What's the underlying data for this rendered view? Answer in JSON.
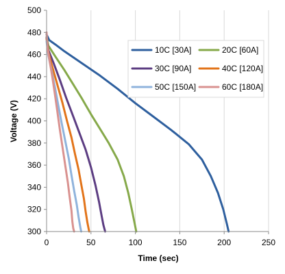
{
  "chart_data": {
    "type": "line",
    "title": "",
    "xlabel": "Time (sec)",
    "ylabel": "Voltage (V)",
    "xlim": [
      0,
      250
    ],
    "ylim": [
      300,
      500
    ],
    "xticks": [
      0,
      50,
      100,
      150,
      200,
      250
    ],
    "yticks": [
      300,
      320,
      340,
      360,
      380,
      400,
      420,
      440,
      460,
      480,
      500
    ],
    "grid": "vertical gridlines only",
    "legend_position": "top-right",
    "series": [
      {
        "name": "10C [30A]",
        "color": "#2e5f9e",
        "points": [
          [
            0,
            478
          ],
          [
            3,
            473
          ],
          [
            10,
            469
          ],
          [
            20,
            463
          ],
          [
            40,
            452
          ],
          [
            60,
            441
          ],
          [
            80,
            429
          ],
          [
            100,
            416
          ],
          [
            120,
            404
          ],
          [
            140,
            392
          ],
          [
            160,
            379
          ],
          [
            175,
            365
          ],
          [
            185,
            350
          ],
          [
            193,
            335
          ],
          [
            199,
            320
          ],
          [
            203,
            307
          ],
          [
            205,
            300
          ]
        ]
      },
      {
        "name": "20C [60A]",
        "color": "#86a94a",
        "points": [
          [
            0,
            476
          ],
          [
            2,
            468
          ],
          [
            10,
            458
          ],
          [
            20,
            446
          ],
          [
            30,
            433
          ],
          [
            40,
            420
          ],
          [
            50,
            406
          ],
          [
            60,
            393
          ],
          [
            70,
            380
          ],
          [
            80,
            365
          ],
          [
            87,
            350
          ],
          [
            92,
            335
          ],
          [
            96,
            320
          ],
          [
            99,
            308
          ],
          [
            101,
            300
          ]
        ]
      },
      {
        "name": "30C [90A]",
        "color": "#5c3d82",
        "points": [
          [
            0,
            475
          ],
          [
            2,
            464
          ],
          [
            8,
            452
          ],
          [
            15,
            437
          ],
          [
            22,
            421
          ],
          [
            30,
            404
          ],
          [
            37,
            389
          ],
          [
            44,
            374
          ],
          [
            50,
            358
          ],
          [
            55,
            342
          ],
          [
            59,
            327
          ],
          [
            62,
            314
          ],
          [
            64,
            306
          ],
          [
            66,
            300
          ]
        ]
      },
      {
        "name": "40C [120A]",
        "color": "#e2741a",
        "points": [
          [
            0,
            474
          ],
          [
            2,
            462
          ],
          [
            6,
            450
          ],
          [
            12,
            433
          ],
          [
            18,
            416
          ],
          [
            23,
            400
          ],
          [
            28,
            385
          ],
          [
            32,
            370
          ],
          [
            36,
            356
          ],
          [
            39,
            343
          ],
          [
            42,
            330
          ],
          [
            44,
            318
          ],
          [
            46,
            308
          ],
          [
            48,
            300
          ]
        ]
      },
      {
        "name": "50C [150A]",
        "color": "#8fb3dc",
        "points": [
          [
            0,
            472
          ],
          [
            2,
            459
          ],
          [
            5,
            448
          ],
          [
            9,
            432
          ],
          [
            13,
            415
          ],
          [
            17,
            398
          ],
          [
            21,
            382
          ],
          [
            25,
            366
          ],
          [
            28,
            351
          ],
          [
            31,
            337
          ],
          [
            34,
            324
          ],
          [
            36,
            313
          ],
          [
            38,
            304
          ],
          [
            39,
            300
          ]
        ]
      },
      {
        "name": "60C [180A]",
        "color": "#d99290",
        "points": [
          [
            0,
            480
          ],
          [
            1,
            466
          ],
          [
            3,
            456
          ],
          [
            6,
            442
          ],
          [
            9,
            426
          ],
          [
            12,
            409
          ],
          [
            15,
            392
          ],
          [
            18,
            376
          ],
          [
            21,
            360
          ],
          [
            24,
            344
          ],
          [
            26,
            331
          ],
          [
            28,
            319
          ],
          [
            29,
            309
          ],
          [
            30,
            303
          ],
          [
            31,
            300
          ]
        ]
      }
    ]
  }
}
